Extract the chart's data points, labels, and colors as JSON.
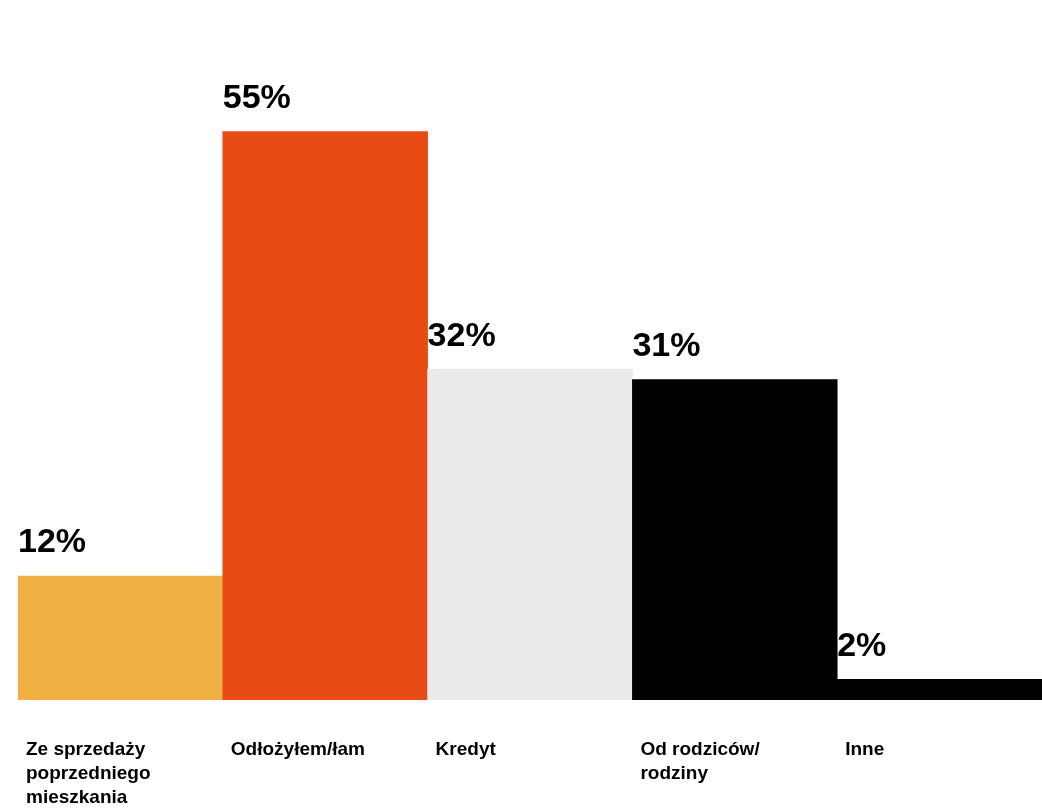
{
  "chart_data": {
    "type": "bar",
    "categories": [
      "Ze sprzedaży poprzedniego mieszkania",
      "Odłożyłem/łam",
      "Kredyt",
      "Od rodziców/ rodziny",
      "Inne"
    ],
    "values": [
      12,
      55,
      32,
      31,
      2
    ],
    "value_labels": [
      "12%",
      "55%",
      "32%",
      "31%",
      "2%"
    ],
    "colors": [
      "#f0b144",
      "#e84c14",
      "#ebebeb",
      "#000000",
      "#000000"
    ],
    "legend": false,
    "tick_labels": "x"
  }
}
